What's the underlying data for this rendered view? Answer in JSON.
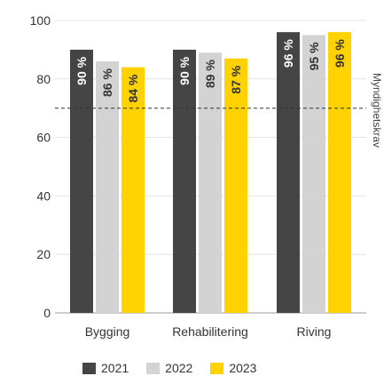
{
  "chart_data": {
    "type": "bar",
    "categories": [
      "Bygging",
      "Rehabilitering",
      "Riving"
    ],
    "series": [
      {
        "name": "2021",
        "values": [
          90,
          90,
          96
        ],
        "labels": [
          "90 %",
          "90 %",
          "96 %"
        ],
        "color": "#454545",
        "label_color": "#ffffff"
      },
      {
        "name": "2022",
        "values": [
          86,
          89,
          95
        ],
        "labels": [
          "86 %",
          "89 %",
          "95 %"
        ],
        "color": "#d3d3d3",
        "label_color": "#333333"
      },
      {
        "name": "2023",
        "values": [
          84,
          87,
          96
        ],
        "labels": [
          "84 %",
          "87 %",
          "96 %"
        ],
        "color": "#ffd200",
        "label_color": "#333333"
      }
    ],
    "ylim": [
      0,
      100
    ],
    "yticks": [
      0,
      20,
      40,
      60,
      80,
      100
    ],
    "grid": true,
    "reference_line": {
      "value": 70,
      "label": "Myndighetskrav",
      "style": "dashed"
    },
    "legend_position": "bottom"
  }
}
